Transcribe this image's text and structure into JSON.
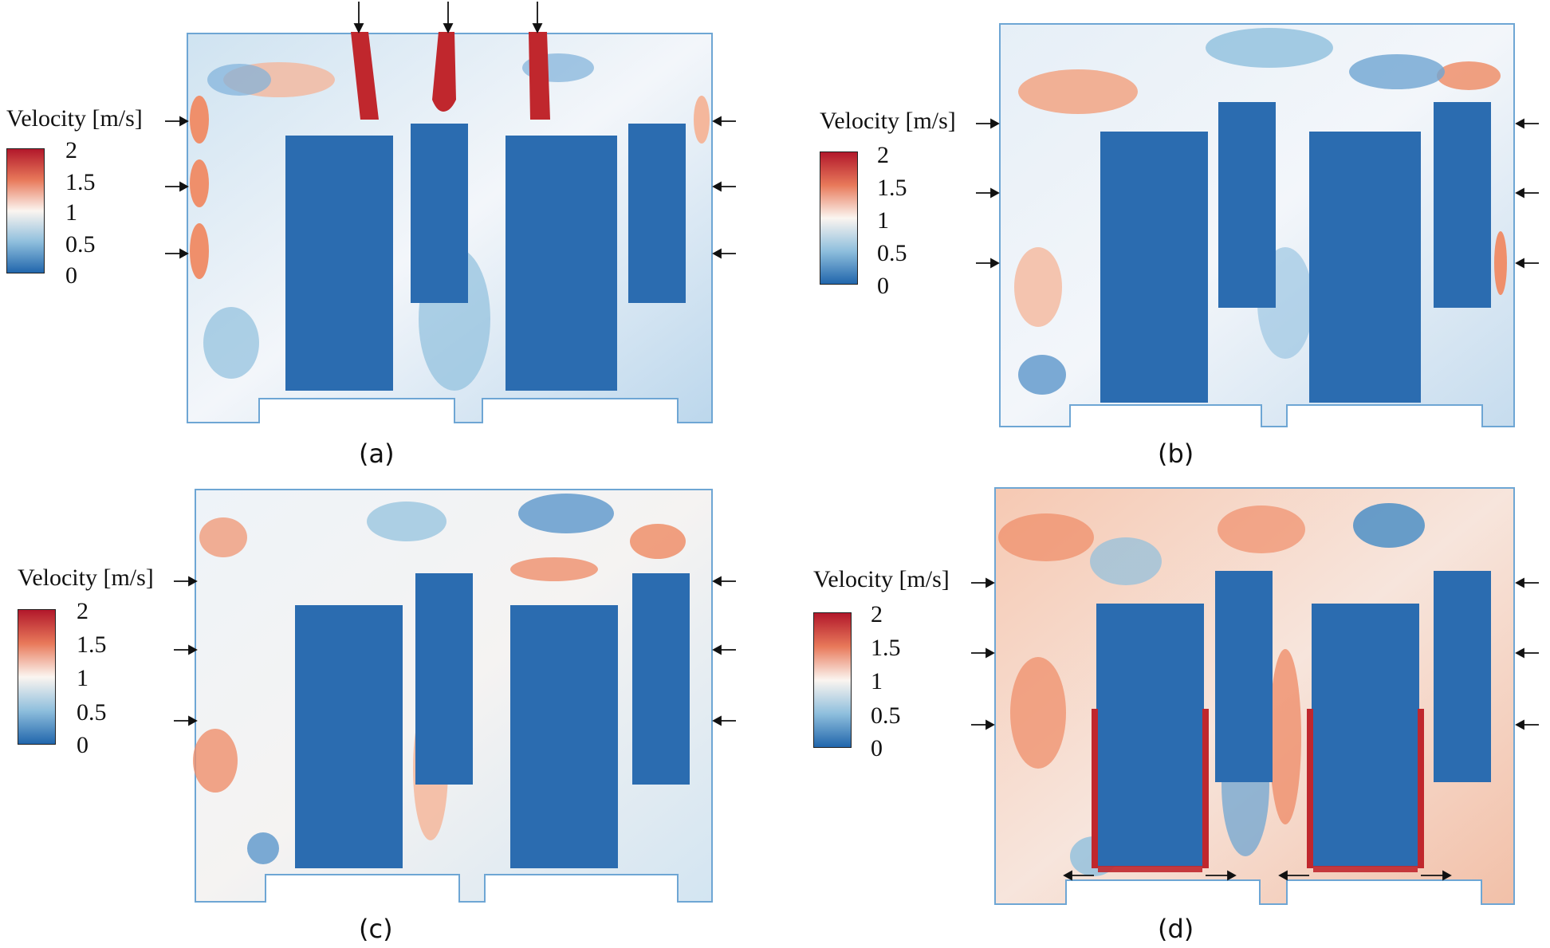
{
  "legend": {
    "title": "Velocity [m/s]",
    "ticks": [
      "2",
      "1.5",
      "1",
      "0.5",
      "0"
    ],
    "colors": [
      "#b2182b",
      "#e8795a",
      "#fbf5f0",
      "#8fbfdd",
      "#2166ac"
    ]
  },
  "panels": [
    {
      "caption": "(a)"
    },
    {
      "caption": "(b)"
    },
    {
      "caption": "(c)"
    },
    {
      "caption": "(d)"
    }
  ],
  "colors": {
    "solid": "#2166ac",
    "low": "#4e8fc6",
    "mid": "#f7f7f7",
    "high": "#e8795a",
    "jet": "#b2182b",
    "arrow": "#111111"
  }
}
